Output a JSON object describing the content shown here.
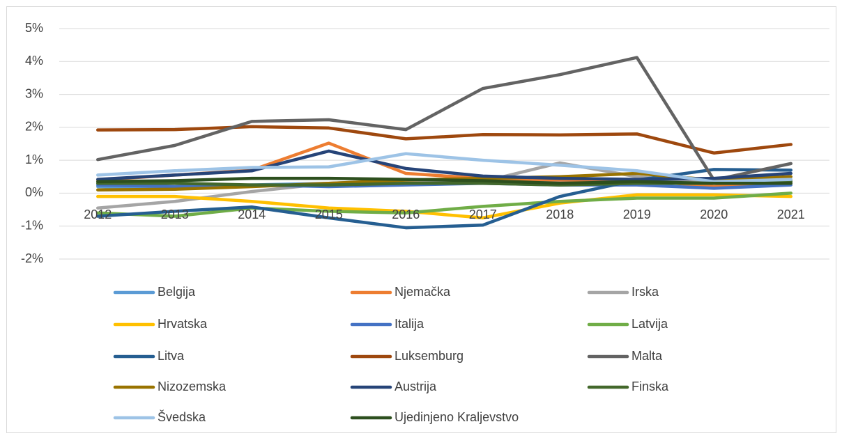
{
  "chart_data": {
    "type": "line",
    "categories": [
      "2012",
      "2013",
      "2014",
      "2015",
      "2016",
      "2017",
      "2018",
      "2019",
      "2020",
      "2021"
    ],
    "ylim": [
      -2,
      5
    ],
    "yticks": [
      {
        "value": -2,
        "label": "-2%"
      },
      {
        "value": -1,
        "label": "-1%"
      },
      {
        "value": 0,
        "label": "0%"
      },
      {
        "value": 1,
        "label": "1%"
      },
      {
        "value": 2,
        "label": "2%"
      },
      {
        "value": 3,
        "label": "3%"
      },
      {
        "value": 4,
        "label": "4%"
      },
      {
        "value": 5,
        "label": "5%"
      }
    ],
    "grid": true,
    "legend": "bottom",
    "series": [
      {
        "name": "Belgija",
        "color": "#5b9bd5",
        "values": [
          0.2,
          0.15,
          0.25,
          0.3,
          0.35,
          0.4,
          0.35,
          0.4,
          0.3,
          0.4
        ]
      },
      {
        "name": "Njemačka",
        "color": "#ed7d31",
        "values": [
          0.4,
          0.55,
          0.7,
          1.52,
          0.6,
          0.45,
          0.4,
          0.4,
          0.2,
          0.35
        ]
      },
      {
        "name": "Irska",
        "color": "#a5a5a5",
        "values": [
          -0.45,
          -0.25,
          0.05,
          0.3,
          0.4,
          0.35,
          0.92,
          0.5,
          0.3,
          0.35
        ]
      },
      {
        "name": "Hrvatska",
        "color": "#ffc000",
        "values": [
          -0.1,
          -0.1,
          -0.25,
          -0.45,
          -0.55,
          -0.75,
          -0.3,
          -0.05,
          -0.05,
          -0.1
        ]
      },
      {
        "name": "Italija",
        "color": "#4472c4",
        "values": [
          0.25,
          0.2,
          0.25,
          0.2,
          0.25,
          0.3,
          0.25,
          0.25,
          0.15,
          0.25
        ]
      },
      {
        "name": "Latvija",
        "color": "#70ad47",
        "values": [
          -0.6,
          -0.7,
          -0.45,
          -0.55,
          -0.6,
          -0.4,
          -0.25,
          -0.15,
          -0.15,
          0
        ]
      },
      {
        "name": "Litva",
        "color": "#255e91",
        "values": [
          -0.7,
          -0.55,
          -0.42,
          -0.75,
          -1.05,
          -0.97,
          -0.1,
          0.4,
          0.72,
          0.7
        ]
      },
      {
        "name": "Luksemburg",
        "color": "#9e480e",
        "values": [
          1.92,
          1.93,
          2.02,
          1.98,
          1.65,
          1.78,
          1.77,
          1.8,
          1.22,
          1.48
        ]
      },
      {
        "name": "Malta",
        "color": "#636363",
        "values": [
          1.02,
          1.45,
          2.18,
          2.23,
          1.93,
          3.18,
          3.6,
          4.12,
          0.4,
          0.9
        ]
      },
      {
        "name": "Nizozemska",
        "color": "#997300",
        "values": [
          0.1,
          0.12,
          0.2,
          0.3,
          0.4,
          0.45,
          0.5,
          0.6,
          0.4,
          0.5
        ]
      },
      {
        "name": "Austrija",
        "color": "#264478",
        "values": [
          0.42,
          0.55,
          0.68,
          1.28,
          0.75,
          0.52,
          0.45,
          0.42,
          0.45,
          0.6
        ]
      },
      {
        "name": "Finska",
        "color": "#43682b",
        "values": [
          0.3,
          0.3,
          0.25,
          0.25,
          0.3,
          0.3,
          0.25,
          0.3,
          0.3,
          0.35
        ]
      },
      {
        "name": "Švedska",
        "color": "#9dc3e6",
        "values": [
          0.55,
          0.68,
          0.78,
          0.8,
          1.2,
          1.0,
          0.85,
          0.68,
          0.35,
          0.42
        ]
      },
      {
        "name": "Ujedinjeno Kraljevstvo",
        "color": "#2d4f1e",
        "values": [
          0.35,
          0.38,
          0.45,
          0.45,
          0.42,
          0.38,
          0.3,
          0.35,
          0.3,
          0.3
        ]
      }
    ]
  }
}
